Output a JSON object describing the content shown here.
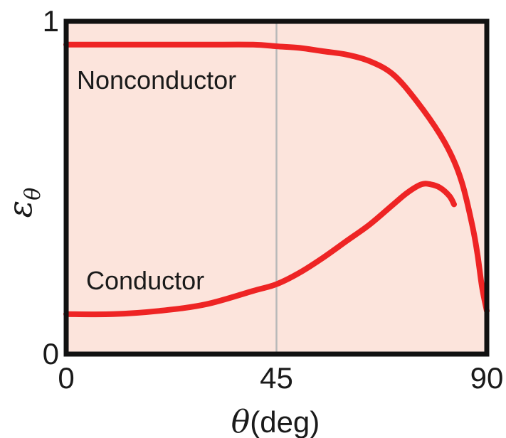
{
  "chart_data": {
    "type": "line",
    "x_axis": {
      "label_symbol": "θ",
      "label_unit": "(deg)",
      "range": [
        0,
        90
      ],
      "ticks": [
        {
          "value": 0,
          "label": "0"
        },
        {
          "value": 45,
          "label": "45"
        },
        {
          "value": 90,
          "label": "90"
        }
      ]
    },
    "y_axis": {
      "label_symbol": "ε",
      "label_subscript": "θ",
      "range": [
        0,
        1
      ],
      "ticks": [
        {
          "value": 0,
          "label": "0"
        },
        {
          "value": 1,
          "label": "1"
        }
      ]
    },
    "reference_line_x": 45,
    "grid": false,
    "series": [
      {
        "name": "Nonconductor",
        "points": [
          [
            0,
            0.93
          ],
          [
            10,
            0.93
          ],
          [
            20,
            0.93
          ],
          [
            30,
            0.93
          ],
          [
            40,
            0.93
          ],
          [
            45,
            0.925
          ],
          [
            50,
            0.92
          ],
          [
            55,
            0.91
          ],
          [
            60,
            0.9
          ],
          [
            65,
            0.88
          ],
          [
            70,
            0.84
          ],
          [
            75,
            0.76
          ],
          [
            80,
            0.66
          ],
          [
            83,
            0.58
          ],
          [
            85,
            0.5
          ],
          [
            87,
            0.38
          ],
          [
            88,
            0.3
          ],
          [
            89,
            0.2
          ],
          [
            90,
            0.13
          ]
        ]
      },
      {
        "name": "Conductor",
        "points": [
          [
            0,
            0.12
          ],
          [
            10,
            0.12
          ],
          [
            20,
            0.13
          ],
          [
            30,
            0.15
          ],
          [
            40,
            0.19
          ],
          [
            45,
            0.21
          ],
          [
            50,
            0.245
          ],
          [
            55,
            0.29
          ],
          [
            60,
            0.34
          ],
          [
            65,
            0.39
          ],
          [
            70,
            0.45
          ],
          [
            73,
            0.485
          ],
          [
            76,
            0.51
          ],
          [
            78,
            0.51
          ],
          [
            80,
            0.5
          ],
          [
            82,
            0.475
          ],
          [
            83,
            0.45
          ]
        ]
      }
    ],
    "colors": {
      "line": "#ee2424",
      "plot_background": "#fce4dc",
      "frame": "#111111",
      "reference_line": "#b9b9b9"
    }
  }
}
